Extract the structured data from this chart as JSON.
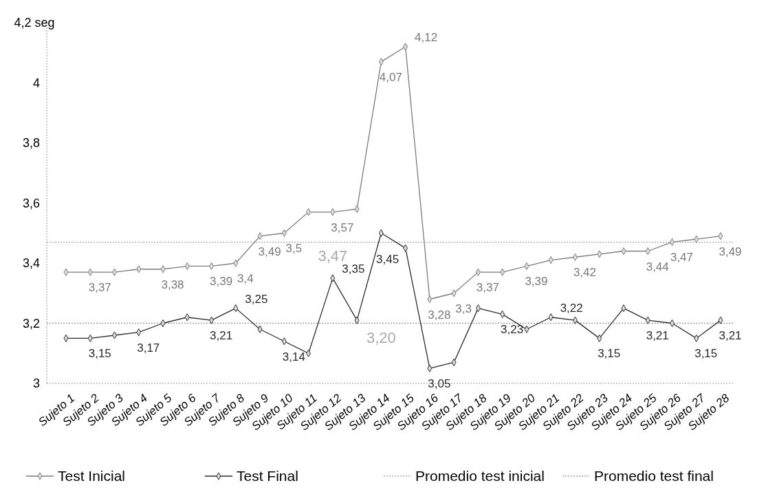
{
  "chart_data": {
    "type": "line",
    "categories": [
      "Sujeto 1",
      "Sujeto 2",
      "Sujeto 3",
      "Sujeto 4",
      "Sujeto 5",
      "Sujeto 6",
      "Sujeto 7",
      "Sujeto 8",
      "Sujeto 9",
      "Sujeto 10",
      "Sujeto 11",
      "Sujeto 12",
      "Sujeto 13",
      "Sujeto 14",
      "Sujeto 15",
      "Sujeto 16",
      "Sujeto 17",
      "Sujeto 18",
      "Sujeto 19",
      "Sujeto 20",
      "Sujeto 21",
      "Sujeto 22",
      "Sujeto 23",
      "Sujeto 24",
      "Sujeto 25",
      "Sujeto 26",
      "Sujeto 27",
      "Sujeto 28"
    ],
    "series": [
      {
        "name": "Test Inicial",
        "color": "#7a7a7a",
        "marker": "diamond",
        "values": [
          3.37,
          3.37,
          3.37,
          3.38,
          3.38,
          3.39,
          3.39,
          3.4,
          3.49,
          3.5,
          3.57,
          3.57,
          3.58,
          4.07,
          4.12,
          3.28,
          3.3,
          3.37,
          3.37,
          3.39,
          3.41,
          3.42,
          3.43,
          3.44,
          3.44,
          3.47,
          3.48,
          3.49
        ],
        "value_labels": [
          null,
          "3,37",
          null,
          null,
          "3,38",
          null,
          "3,39",
          "3,4",
          "3,49",
          "3,5",
          null,
          "3,57",
          null,
          "4,07",
          "4,12",
          "3,28",
          "3,3",
          "3,37",
          null,
          "3,39",
          null,
          "3,42",
          null,
          null,
          "3,44",
          "3,47",
          null,
          "3,49"
        ]
      },
      {
        "name": "Test Final",
        "color": "#2a2a2a",
        "marker": "diamond",
        "values": [
          3.15,
          3.15,
          3.16,
          3.17,
          3.2,
          3.22,
          3.21,
          3.25,
          3.18,
          3.14,
          3.1,
          3.35,
          3.21,
          3.5,
          3.45,
          3.05,
          3.07,
          3.25,
          3.23,
          3.18,
          3.22,
          3.21,
          3.15,
          3.25,
          3.21,
          3.2,
          3.15,
          3.21
        ],
        "value_labels": [
          null,
          "3,15",
          null,
          "3,17",
          null,
          null,
          "3,21",
          "3,25",
          null,
          "3,14",
          null,
          "3,35",
          null,
          null,
          "3,45",
          "3,05",
          null,
          null,
          "3,23",
          null,
          "3,22",
          null,
          "3,15",
          null,
          "3,21",
          null,
          "3,15",
          "3,21"
        ]
      }
    ],
    "ref_lines": [
      {
        "axis": "y",
        "value": 3.47,
        "label": "Promedio test inicial",
        "color": "#b0b0b0",
        "line_style": "dotted"
      },
      {
        "axis": "y",
        "value": 3.2,
        "label": "Promedio test final",
        "color": "#a0a0a0",
        "line_style": "dotted"
      }
    ],
    "annotations": [
      {
        "text": "3,47",
        "x": "Sujeto 12",
        "y": 3.47
      },
      {
        "text": "3,20",
        "x": "Sujeto 14",
        "y": 3.2
      }
    ],
    "ylim": [
      3,
      4.2
    ],
    "yticks": [
      {
        "value": 3,
        "label": "3"
      },
      {
        "value": 3.2,
        "label": "3,2"
      },
      {
        "value": 3.4,
        "label": "3,4"
      },
      {
        "value": 3.6,
        "label": "3,6"
      },
      {
        "value": 3.8,
        "label": "3,8"
      },
      {
        "value": 4,
        "label": "4"
      },
      {
        "value": 4.2,
        "label": "4,2 seg"
      }
    ],
    "grid": false,
    "legend": "bottom",
    "line_style": "solid"
  }
}
